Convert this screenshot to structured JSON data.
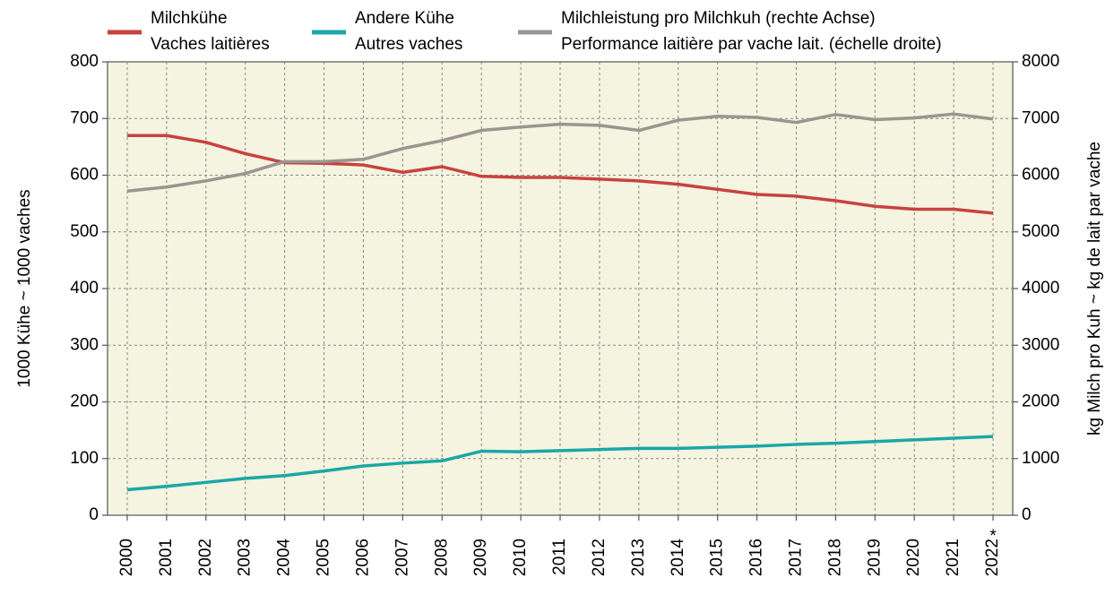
{
  "chart_data": {
    "type": "line",
    "categories": [
      "2000",
      "2001",
      "2002",
      "2003",
      "2004",
      "2005",
      "2006",
      "2007",
      "2008",
      "2009",
      "2010",
      "2011",
      "2012",
      "2013",
      "2014",
      "2015",
      "2016",
      "2017",
      "2018",
      "2019",
      "2020",
      "2021",
      "2022"
    ],
    "annotation": "*",
    "ylabel": "1000 Kühe   ~   1000 vaches",
    "y2label": "kg Milch pro Kuh   ~   kg de lait par vache",
    "ylim": [
      0,
      800
    ],
    "yticks": [
      0,
      100,
      200,
      300,
      400,
      500,
      600,
      700,
      800
    ],
    "y2lim": [
      0,
      8000
    ],
    "y2ticks": [
      0,
      1000,
      2000,
      3000,
      4000,
      5000,
      6000,
      7000,
      8000
    ],
    "grid": true,
    "series": [
      {
        "name": [
          "Milchkühe",
          "Vaches laitières"
        ],
        "color": "#c8423f",
        "values": [
          670,
          670,
          658,
          638,
          622,
          621,
          618,
          605,
          615,
          598,
          596,
          596,
          593,
          590,
          584,
          575,
          566,
          563,
          555,
          545,
          540,
          540,
          533
        ]
      },
      {
        "name": [
          "Andere Kühe",
          "Autres vaches"
        ],
        "color": "#1aa7a7",
        "values": [
          45,
          51,
          58,
          65,
          70,
          78,
          87,
          92,
          96,
          113,
          112,
          114,
          116,
          118,
          118,
          120,
          122,
          125,
          127,
          130,
          133,
          136,
          139
        ]
      },
      {
        "name": [
          "Milchleistung pro Milchkuh (rechte Achse)",
          "Performance laitière par vache lait. (échelle droite)"
        ],
        "color": "#9b9590",
        "axis": "y2",
        "values": [
          5720,
          5790,
          5900,
          6030,
          6240,
          6240,
          6280,
          6470,
          6610,
          6790,
          6850,
          6900,
          6880,
          6790,
          6970,
          7040,
          7020,
          6930,
          7070,
          6980,
          7010,
          7080,
          6990
        ]
      }
    ]
  }
}
